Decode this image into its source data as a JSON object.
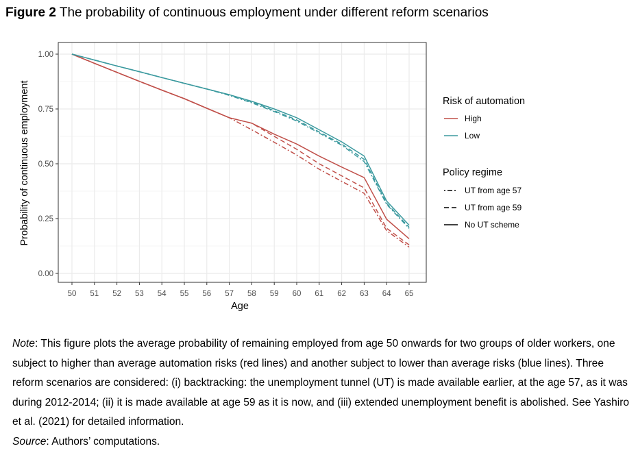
{
  "figure": {
    "label": "Figure 2",
    "title": "The probability of continuous employment under different reform scenarios"
  },
  "chart_data": {
    "type": "line",
    "xlabel": "Age",
    "ylabel": "Probability of continuous employment",
    "xlim": [
      50,
      65
    ],
    "ylim": [
      0,
      1
    ],
    "x": [
      50,
      51,
      52,
      53,
      54,
      55,
      56,
      57,
      58,
      59,
      60,
      61,
      62,
      63,
      64,
      65
    ],
    "x_ticks": [
      "50",
      "51",
      "52",
      "53",
      "54",
      "55",
      "56",
      "57",
      "58",
      "59",
      "60",
      "61",
      "62",
      "63",
      "64",
      "65"
    ],
    "y_ticks": [
      "0.00",
      "0.25",
      "0.50",
      "0.75",
      "1.00"
    ],
    "grid": true,
    "legend_position": "right",
    "legends": [
      {
        "title": "Risk of automation",
        "entries": [
          {
            "label": "High",
            "color": "#c0504a"
          },
          {
            "label": "Low",
            "color": "#3c9a9f"
          }
        ]
      },
      {
        "title": "Policy regime",
        "entries": [
          {
            "label": "UT from age 57",
            "dash": "dotdash"
          },
          {
            "label": "UT from age 59",
            "dash": "dashed"
          },
          {
            "label": "No UT scheme",
            "dash": "solid"
          }
        ]
      }
    ],
    "series": [
      {
        "risk": "High",
        "regime": "No UT scheme",
        "color": "#c0504a",
        "dash": "solid",
        "values": [
          1.0,
          0.958,
          0.917,
          0.876,
          0.836,
          0.797,
          0.753,
          0.71,
          0.685,
          0.635,
          0.59,
          0.535,
          0.485,
          0.437,
          0.247,
          0.158
        ]
      },
      {
        "risk": "High",
        "regime": "UT from age 59",
        "color": "#c0504a",
        "dash": "dashed",
        "values": [
          1.0,
          0.958,
          0.917,
          0.876,
          0.836,
          0.797,
          0.753,
          0.71,
          0.685,
          0.625,
          0.566,
          0.5,
          0.445,
          0.39,
          0.206,
          0.13
        ]
      },
      {
        "risk": "High",
        "regime": "UT from age 57",
        "color": "#c0504a",
        "dash": "dotdash",
        "values": [
          1.0,
          0.958,
          0.917,
          0.876,
          0.836,
          0.797,
          0.753,
          0.71,
          0.655,
          0.598,
          0.54,
          0.475,
          0.42,
          0.365,
          0.195,
          0.12
        ]
      },
      {
        "risk": "Low",
        "regime": "No UT scheme",
        "color": "#3c9a9f",
        "dash": "solid",
        "values": [
          1.0,
          0.973,
          0.946,
          0.92,
          0.893,
          0.867,
          0.841,
          0.815,
          0.785,
          0.75,
          0.71,
          0.655,
          0.6,
          0.535,
          0.33,
          0.22
        ]
      },
      {
        "risk": "Low",
        "regime": "UT from age 59",
        "color": "#3c9a9f",
        "dash": "dashed",
        "values": [
          1.0,
          0.973,
          0.946,
          0.92,
          0.893,
          0.867,
          0.841,
          0.815,
          0.782,
          0.742,
          0.7,
          0.645,
          0.59,
          0.52,
          0.32,
          0.21
        ]
      },
      {
        "risk": "Low",
        "regime": "UT from age 57",
        "color": "#3c9a9f",
        "dash": "dotdash",
        "values": [
          1.0,
          0.973,
          0.946,
          0.92,
          0.893,
          0.867,
          0.841,
          0.812,
          0.778,
          0.738,
          0.695,
          0.64,
          0.585,
          0.51,
          0.315,
          0.205
        ]
      }
    ]
  },
  "note": {
    "label": "Note",
    "text": ": This figure plots the average probability of remaining employed from age 50 onwards for two groups of older workers, one subject to higher than average automation risks (red lines) and another subject to lower than average risks (blue lines). Three reform scenarios are considered: (i) backtracking: the unemployment tunnel (UT) is made available earlier, at the age 57, as it was during 2012-2014; (ii) it is made available at age 59 as it is now, and (iii) extended unemployment benefit is abolished. See Yashiro et al. (2021) for detailed information.",
    "source_label": "Source",
    "source_text": ": Authors’ computations."
  }
}
